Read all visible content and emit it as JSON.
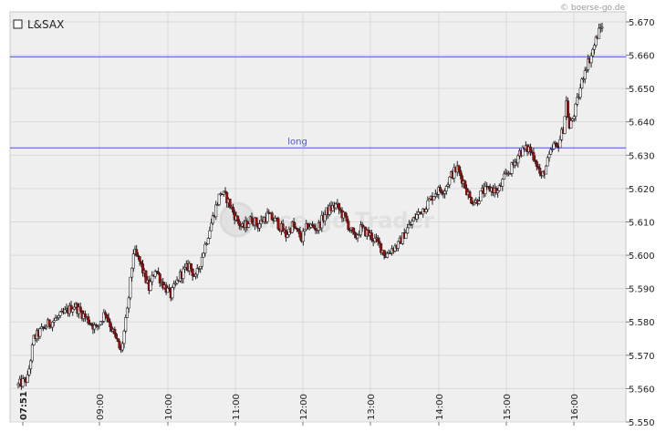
{
  "watermark_top": "© boerse-go.de",
  "watermark_center": "boerse-go Trader",
  "chart_data": {
    "type": "candlestick",
    "title": "",
    "legend": [
      {
        "label": "L&SAX",
        "position": "top-left"
      }
    ],
    "x_ticks": [
      "07:51",
      "09:00",
      "10:00",
      "11:00",
      "12:00",
      "13:00",
      "14:00",
      "15:00",
      "16:00"
    ],
    "y_ticks": [
      "5.550",
      "5.560",
      "5.570",
      "5.580",
      "5.590",
      "5.600",
      "5.610",
      "5.620",
      "5.630",
      "5.640",
      "5.650",
      "5.660",
      "5.670"
    ],
    "ylim": [
      5.55,
      5.673
    ],
    "y_axis_position": "right",
    "grid": true,
    "horizontal_lines": [
      {
        "value": 5.6595,
        "label": "",
        "color": "#4a55d8"
      },
      {
        "value": 5.6322,
        "label": "long",
        "color": "#4a55d8"
      }
    ],
    "price_path": [
      [
        0,
        5.561
      ],
      [
        6,
        5.563
      ],
      [
        10,
        5.575
      ],
      [
        18,
        5.579
      ],
      [
        28,
        5.582
      ],
      [
        36,
        5.585
      ],
      [
        44,
        5.581
      ],
      [
        50,
        5.578
      ],
      [
        56,
        5.583
      ],
      [
        60,
        5.578
      ],
      [
        66,
        5.571
      ],
      [
        70,
        5.583
      ],
      [
        74,
        5.601
      ],
      [
        78,
        5.598
      ],
      [
        84,
        5.59
      ],
      [
        88,
        5.596
      ],
      [
        92,
        5.592
      ],
      [
        98,
        5.588
      ],
      [
        104,
        5.594
      ],
      [
        110,
        5.597
      ],
      [
        114,
        5.593
      ],
      [
        120,
        5.603
      ],
      [
        126,
        5.613
      ],
      [
        130,
        5.619
      ],
      [
        134,
        5.617
      ],
      [
        140,
        5.611
      ],
      [
        144,
        5.608
      ],
      [
        150,
        5.611
      ],
      [
        154,
        5.609
      ],
      [
        160,
        5.612
      ],
      [
        166,
        5.61
      ],
      [
        172,
        5.606
      ],
      [
        176,
        5.609
      ],
      [
        182,
        5.605
      ],
      [
        186,
        5.609
      ],
      [
        192,
        5.608
      ],
      [
        198,
        5.613
      ],
      [
        204,
        5.615
      ],
      [
        210,
        5.611
      ],
      [
        216,
        5.605
      ],
      [
        220,
        5.608
      ],
      [
        226,
        5.606
      ],
      [
        232,
        5.603
      ],
      [
        236,
        5.6
      ],
      [
        240,
        5.602
      ],
      [
        244,
        5.603
      ],
      [
        250,
        5.608
      ],
      [
        256,
        5.612
      ],
      [
        262,
        5.615
      ],
      [
        268,
        5.619
      ],
      [
        274,
        5.62
      ],
      [
        278,
        5.624
      ],
      [
        282,
        5.626
      ],
      [
        286,
        5.622
      ],
      [
        290,
        5.617
      ],
      [
        294,
        5.616
      ],
      [
        298,
        5.619
      ],
      [
        304,
        5.62
      ],
      [
        308,
        5.619
      ],
      [
        312,
        5.623
      ],
      [
        318,
        5.627
      ],
      [
        322,
        5.631
      ],
      [
        328,
        5.632
      ],
      [
        332,
        5.629
      ],
      [
        336,
        5.623
      ],
      [
        340,
        5.628
      ],
      [
        344,
        5.633
      ],
      [
        346,
        5.632
      ],
      [
        350,
        5.638
      ],
      [
        352,
        5.646
      ],
      [
        354,
        5.638
      ],
      [
        358,
        5.644
      ],
      [
        362,
        5.652
      ],
      [
        364,
        5.656
      ],
      [
        368,
        5.66
      ],
      [
        372,
        5.666
      ],
      [
        375,
        5.669
      ]
    ]
  }
}
